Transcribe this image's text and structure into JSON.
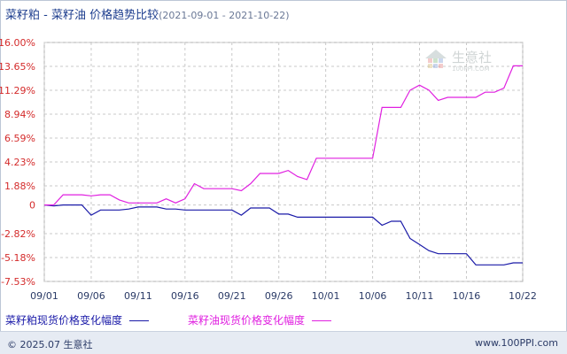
{
  "header": {
    "title": "菜籽粕 - 菜籽油 价格趋势比较",
    "date_range": "(2021-09-01 - 2021-10-22)"
  },
  "watermark": {
    "brand": "生意社",
    "url": "100PPI.COM"
  },
  "footer": {
    "copyright": "© 2025.07 生意社",
    "site": "www.100PPI.com"
  },
  "colors": {
    "series1": "#1a1aa8",
    "series2": "#e020e0",
    "axis_labels": "#d42b2b",
    "grid": "#c9c9c9"
  },
  "chart_data": {
    "type": "line",
    "title": "菜籽粕 - 菜籽油 价格趋势比较",
    "xlabel": "",
    "ylabel": "",
    "x_ticks": [
      "09/01",
      "09/06",
      "09/11",
      "09/16",
      "09/21",
      "09/26",
      "10/01",
      "10/06",
      "10/11",
      "10/16",
      "10/22"
    ],
    "y_ticks": [
      "16.00%",
      "13.65%",
      "11.29%",
      "8.94%",
      "6.59%",
      "4.23%",
      "1.88%",
      "0",
      "-2.82%",
      "-5.18%",
      "-7.53%"
    ],
    "ylim": [
      -7.53,
      16.0
    ],
    "xlim": [
      "09/01",
      "10/22"
    ],
    "grid": true,
    "legend_position": "bottom",
    "series": [
      {
        "name": "菜籽粕现货价格变化幅度",
        "points": [
          [
            "09/01",
            0.0
          ],
          [
            "09/02",
            -0.1
          ],
          [
            "09/03",
            0.0
          ],
          [
            "09/04",
            0.0
          ],
          [
            "09/05",
            0.0
          ],
          [
            "09/06",
            -1.0
          ],
          [
            "09/07",
            -0.5
          ],
          [
            "09/08",
            -0.5
          ],
          [
            "09/09",
            -0.5
          ],
          [
            "09/10",
            -0.4
          ],
          [
            "09/11",
            -0.2
          ],
          [
            "09/12",
            -0.2
          ],
          [
            "09/13",
            -0.2
          ],
          [
            "09/14",
            -0.4
          ],
          [
            "09/15",
            -0.4
          ],
          [
            "09/16",
            -0.5
          ],
          [
            "09/17",
            -0.5
          ],
          [
            "09/18",
            -0.5
          ],
          [
            "09/19",
            -0.5
          ],
          [
            "09/20",
            -0.5
          ],
          [
            "09/21",
            -0.5
          ],
          [
            "09/22",
            -1.0
          ],
          [
            "09/23",
            -0.3
          ],
          [
            "09/24",
            -0.3
          ],
          [
            "09/25",
            -0.3
          ],
          [
            "09/26",
            -0.9
          ],
          [
            "09/27",
            -0.9
          ],
          [
            "09/28",
            -1.2
          ],
          [
            "09/29",
            -1.2
          ],
          [
            "09/30",
            -1.2
          ],
          [
            "10/01",
            -1.2
          ],
          [
            "10/02",
            -1.2
          ],
          [
            "10/03",
            -1.2
          ],
          [
            "10/04",
            -1.2
          ],
          [
            "10/05",
            -1.2
          ],
          [
            "10/06",
            -1.2
          ],
          [
            "10/07",
            -2.0
          ],
          [
            "10/08",
            -1.6
          ],
          [
            "10/09",
            -1.6
          ],
          [
            "10/10",
            -3.3
          ],
          [
            "10/11",
            -3.9
          ],
          [
            "10/12",
            -4.5
          ],
          [
            "10/13",
            -4.8
          ],
          [
            "10/14",
            -4.8
          ],
          [
            "10/15",
            -4.8
          ],
          [
            "10/16",
            -4.8
          ],
          [
            "10/17",
            -5.9
          ],
          [
            "10/18",
            -5.9
          ],
          [
            "10/19",
            -5.9
          ],
          [
            "10/20",
            -5.9
          ],
          [
            "10/21",
            -5.7
          ],
          [
            "10/22",
            -5.7
          ]
        ]
      },
      {
        "name": "菜籽油现货价格变化幅度",
        "points": [
          [
            "09/01",
            0.0
          ],
          [
            "09/02",
            0.0
          ],
          [
            "09/03",
            1.0
          ],
          [
            "09/04",
            1.0
          ],
          [
            "09/05",
            1.0
          ],
          [
            "09/06",
            0.9
          ],
          [
            "09/07",
            1.0
          ],
          [
            "09/08",
            1.0
          ],
          [
            "09/09",
            0.5
          ],
          [
            "09/10",
            0.2
          ],
          [
            "09/11",
            0.2
          ],
          [
            "09/12",
            0.2
          ],
          [
            "09/13",
            0.2
          ],
          [
            "09/14",
            0.6
          ],
          [
            "09/15",
            0.2
          ],
          [
            "09/16",
            0.6
          ],
          [
            "09/17",
            2.1
          ],
          [
            "09/18",
            1.6
          ],
          [
            "09/19",
            1.6
          ],
          [
            "09/20",
            1.6
          ],
          [
            "09/21",
            1.6
          ],
          [
            "09/22",
            1.4
          ],
          [
            "09/23",
            2.1
          ],
          [
            "09/24",
            3.1
          ],
          [
            "09/25",
            3.1
          ],
          [
            "09/26",
            3.1
          ],
          [
            "09/27",
            3.4
          ],
          [
            "09/28",
            2.8
          ],
          [
            "09/29",
            2.5
          ],
          [
            "09/30",
            4.6
          ],
          [
            "10/01",
            4.6
          ],
          [
            "10/02",
            4.6
          ],
          [
            "10/03",
            4.6
          ],
          [
            "10/04",
            4.6
          ],
          [
            "10/05",
            4.6
          ],
          [
            "10/06",
            4.6
          ],
          [
            "10/07",
            9.6
          ],
          [
            "10/08",
            9.6
          ],
          [
            "10/09",
            9.6
          ],
          [
            "10/10",
            11.3
          ],
          [
            "10/11",
            11.8
          ],
          [
            "10/12",
            11.3
          ],
          [
            "10/13",
            10.3
          ],
          [
            "10/14",
            10.6
          ],
          [
            "10/15",
            10.6
          ],
          [
            "10/16",
            10.6
          ],
          [
            "10/17",
            10.6
          ],
          [
            "10/18",
            11.1
          ],
          [
            "10/19",
            11.1
          ],
          [
            "10/20",
            11.5
          ],
          [
            "10/21",
            13.7
          ],
          [
            "10/22",
            13.7
          ]
        ]
      }
    ]
  }
}
